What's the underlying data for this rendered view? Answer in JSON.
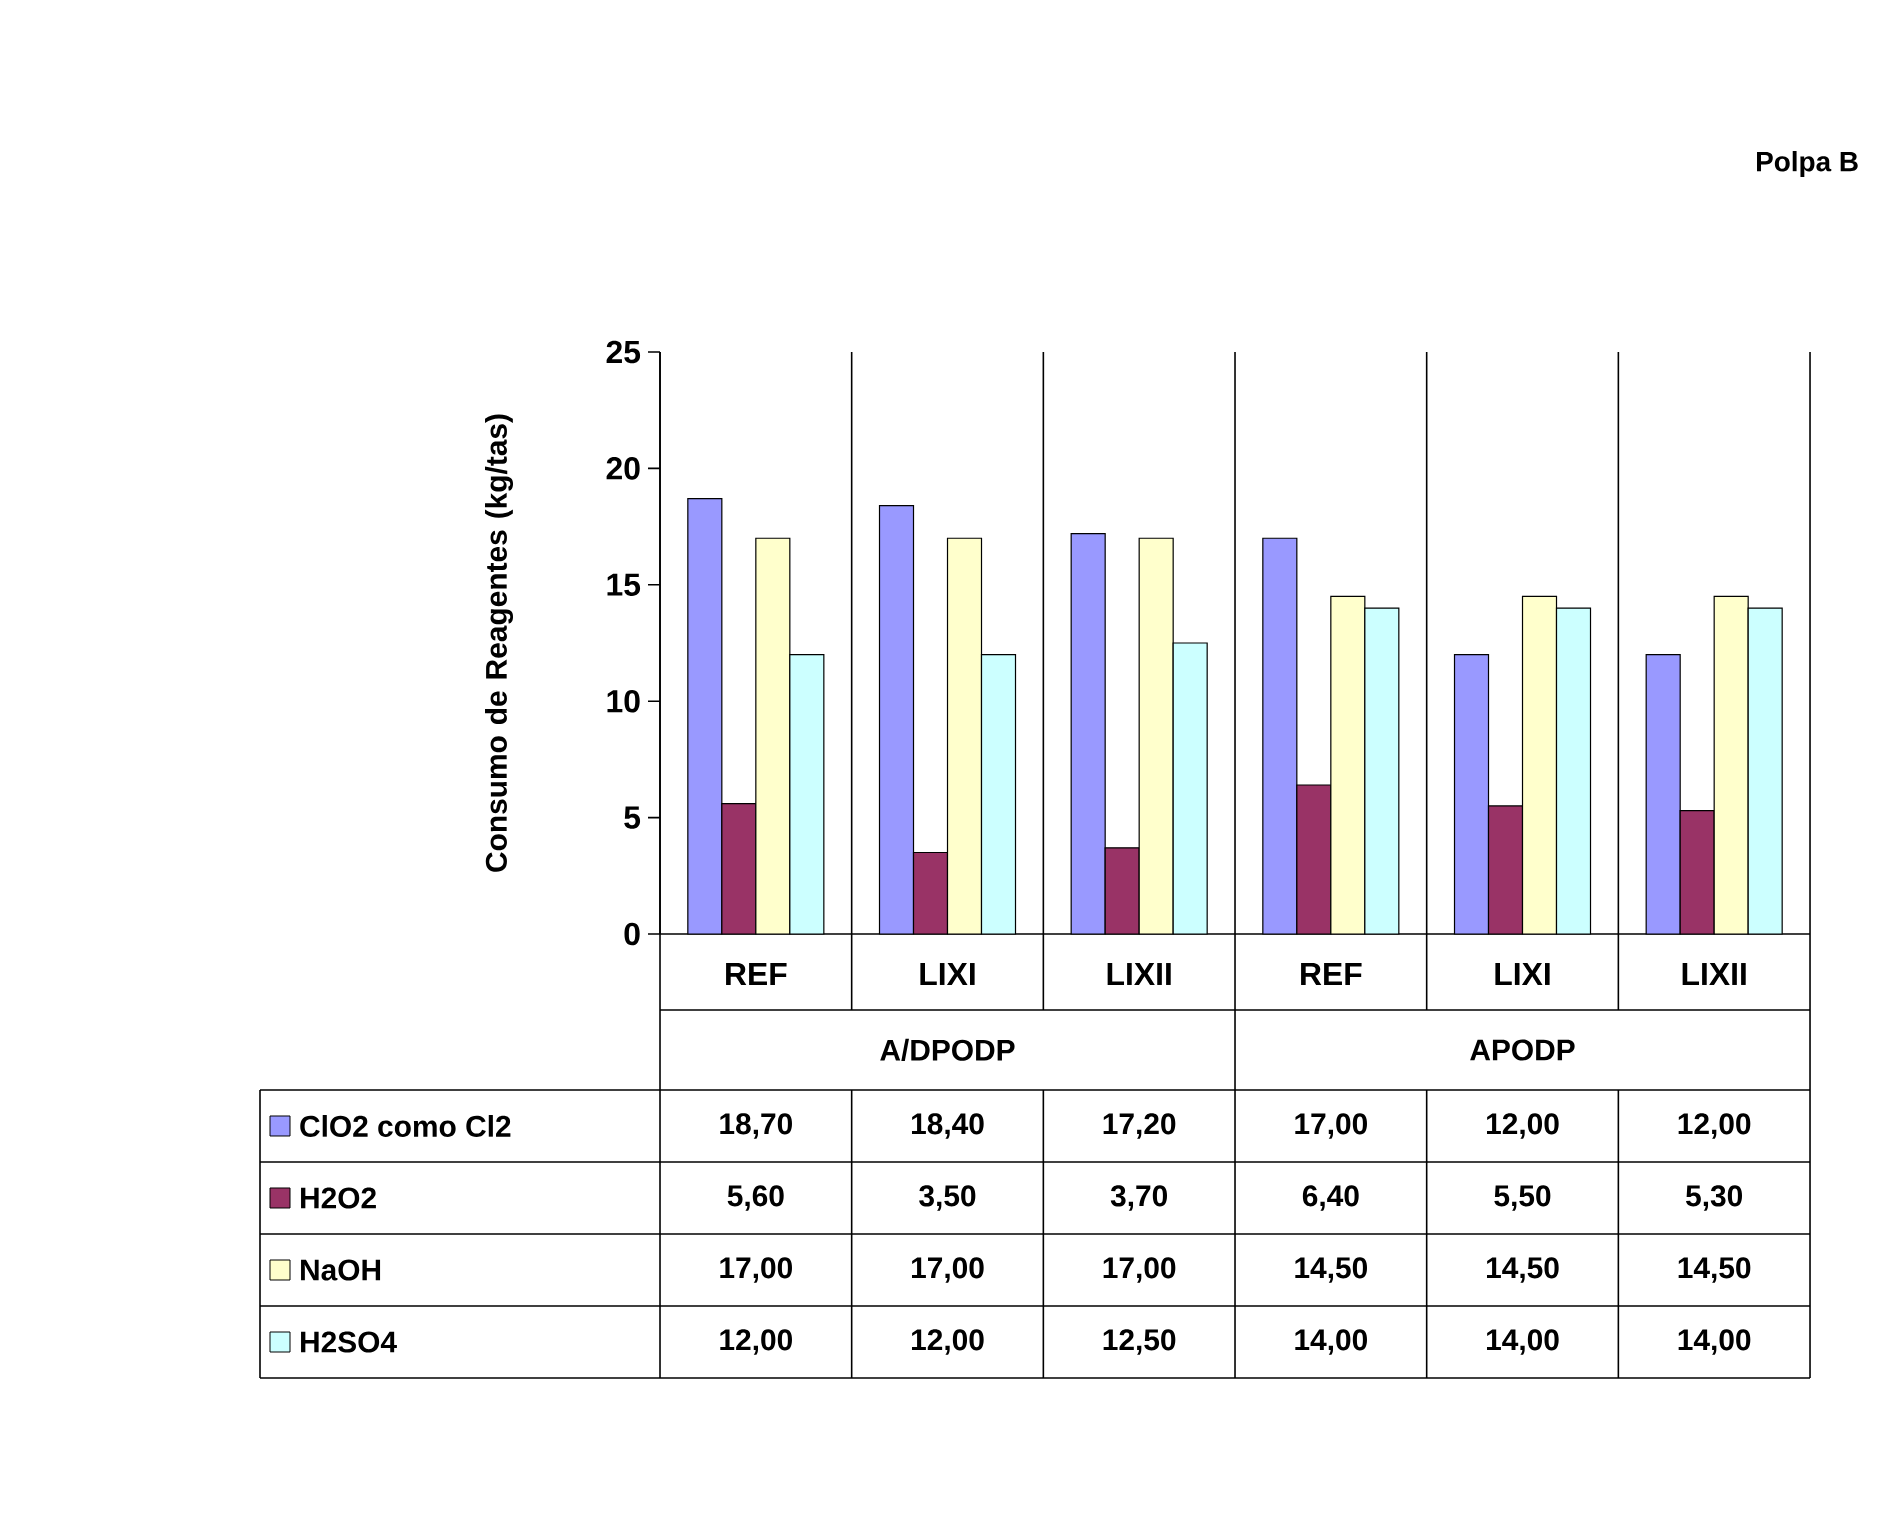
{
  "chart_data": {
    "type": "bar",
    "title": "Polpa B",
    "ylabel": "Consumo de Reagentes (kg/tas)",
    "categories": [
      "REF",
      "LIXI",
      "LIXII",
      "REF",
      "LIXI",
      "LIXII"
    ],
    "annotations": [
      "A/DPODP",
      "APODP"
    ],
    "series": [
      {
        "name": "ClO2 como Cl2",
        "color": "#9999ff",
        "values": [
          18.7,
          18.4,
          17.2,
          17.0,
          12.0,
          12.0
        ],
        "value_labels": [
          "18,70",
          "18,40",
          "17,20",
          "17,00",
          "12,00",
          "12,00"
        ]
      },
      {
        "name": "H2O2",
        "color": "#993366",
        "values": [
          5.6,
          3.5,
          3.7,
          6.4,
          5.5,
          5.3
        ],
        "value_labels": [
          "5,60",
          "3,50",
          "3,70",
          "6,40",
          "5,50",
          "5,30"
        ]
      },
      {
        "name": "NaOH",
        "color": "#ffffcc",
        "values": [
          17.0,
          17.0,
          17.0,
          14.5,
          14.5,
          14.5
        ],
        "value_labels": [
          "17,00",
          "17,00",
          "17,00",
          "14,50",
          "14,50",
          "14,50"
        ]
      },
      {
        "name": "H2SO4",
        "color": "#ccffff",
        "values": [
          12.0,
          12.0,
          12.5,
          14.0,
          14.0,
          14.0
        ],
        "value_labels": [
          "12,00",
          "12,00",
          "12,50",
          "14,00",
          "14,00",
          "14,00"
        ]
      }
    ],
    "ylim": [
      0,
      25
    ],
    "yticks": [
      0,
      5,
      10,
      15,
      20,
      25
    ],
    "grid": false,
    "legend": "bottom"
  }
}
